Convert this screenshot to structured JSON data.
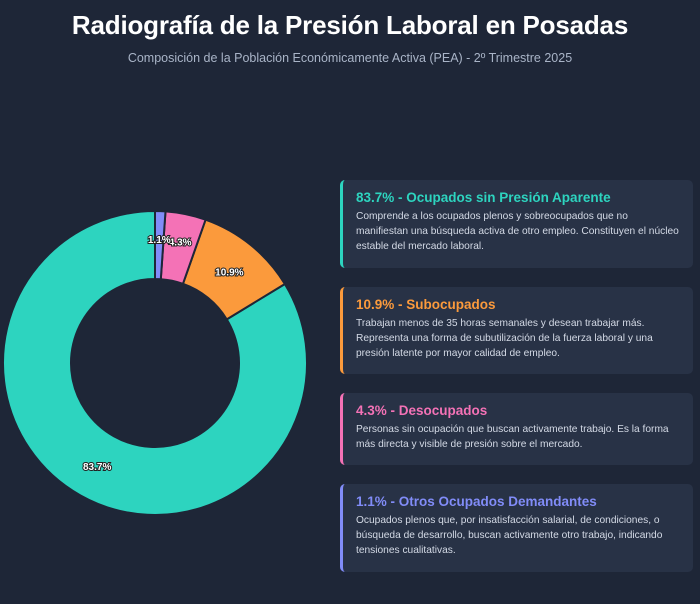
{
  "header": {
    "title": "Radiografía de la Presión Laboral en Posadas",
    "subtitle": "Composición de la Población Económicamente Activa (PEA) - 2º Trimestre 2025"
  },
  "chart_data": {
    "type": "pie",
    "variant": "donut",
    "title": "Radiografía de la Presión Laboral en Posadas",
    "subtitle": "Composición de la Población Económicamente Activa (PEA) - 2º Trimestre 2025",
    "slices": [
      {
        "value": 83.7,
        "label": "83.7%",
        "color": "#2dd4bf"
      },
      {
        "value": 10.9,
        "label": "10.9%",
        "color": "#fb9a3c"
      },
      {
        "value": 4.3,
        "label": "4.3%",
        "color": "#f472b6"
      },
      {
        "value": 1.1,
        "label": "1.1%",
        "color": "#818cf8"
      }
    ]
  },
  "cards": [
    {
      "title": "83.7% - Ocupados sin Presión Aparente",
      "text": "Comprende a los ocupados plenos y sobreocupados que no manifiestan una búsqueda activa de otro empleo. Constituyen el núcleo estable del mercado laboral.",
      "color": "#2dd4bf"
    },
    {
      "title": "10.9% - Subocupados",
      "text": "Trabajan menos de 35 horas semanales y desean trabajar más. Representa una forma de subutilización de la fuerza laboral y una presión latente por mayor calidad de empleo.",
      "color": "#fb9a3c"
    },
    {
      "title": "4.3% - Desocupados",
      "text": "Personas sin ocupación que buscan activamente trabajo. Es la forma más directa y visible de presión sobre el mercado.",
      "color": "#f472b6"
    },
    {
      "title": "1.1% - Otros Ocupados Demandantes",
      "text": "Ocupados plenos que, por insatisfacción salarial, de condiciones, o búsqueda de desarrollo, buscan activamente otro trabajo, indicando tensiones cualitativas.",
      "color": "#818cf8"
    }
  ]
}
